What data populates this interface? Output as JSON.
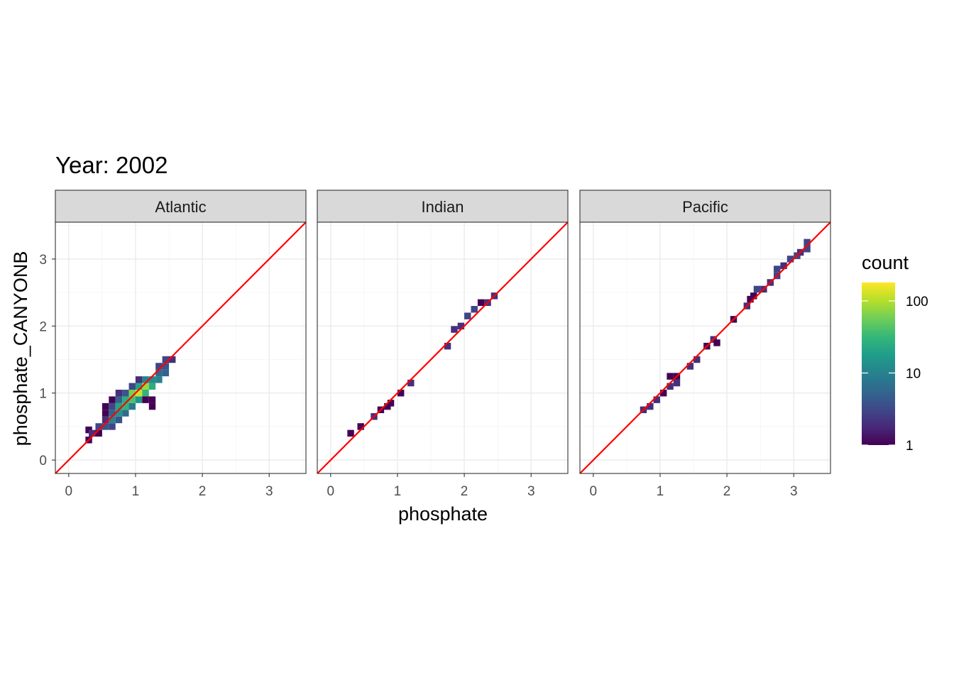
{
  "chart_data": {
    "type": "heatmap",
    "title": "Year: 2002",
    "xlabel": "phosphate",
    "ylabel": "phosphate_CANYONB",
    "xlim": [
      -0.2,
      3.55
    ],
    "ylim": [
      -0.2,
      3.55
    ],
    "x_ticks": [
      "0",
      "1",
      "2",
      "3"
    ],
    "y_ticks": [
      "0",
      "1",
      "2",
      "3"
    ],
    "grid": true,
    "bin_width": 0.1,
    "reference_line": {
      "intercept": 0,
      "slope": 1,
      "color": "#ff0000"
    },
    "legend": {
      "title": "count",
      "position": "right",
      "scale": "log10",
      "breaks": [
        "1",
        "10",
        "100"
      ],
      "colormap": [
        "#440154",
        "#482878",
        "#3e4989",
        "#31688e",
        "#26828e",
        "#1f9e89",
        "#35b779",
        "#6ece58",
        "#b5de2b",
        "#fde725"
      ]
    },
    "panels": [
      {
        "label": "Atlantic",
        "bins": [
          [
            0.3,
            0.3,
            1
          ],
          [
            0.3,
            0.45,
            1
          ],
          [
            0.35,
            0.4,
            2
          ],
          [
            0.45,
            0.4,
            1
          ],
          [
            0.45,
            0.5,
            3
          ],
          [
            0.55,
            0.5,
            4
          ],
          [
            0.55,
            0.6,
            2
          ],
          [
            0.55,
            0.7,
            1
          ],
          [
            0.55,
            0.8,
            1
          ],
          [
            0.65,
            0.5,
            3
          ],
          [
            0.65,
            0.6,
            10
          ],
          [
            0.65,
            0.7,
            5
          ],
          [
            0.65,
            0.8,
            3
          ],
          [
            0.65,
            0.9,
            1
          ],
          [
            0.75,
            0.6,
            4
          ],
          [
            0.75,
            0.7,
            15
          ],
          [
            0.75,
            0.8,
            20
          ],
          [
            0.75,
            0.9,
            5
          ],
          [
            0.75,
            1.0,
            2
          ],
          [
            0.85,
            0.7,
            6
          ],
          [
            0.85,
            0.8,
            30
          ],
          [
            0.85,
            0.9,
            25
          ],
          [
            0.85,
            1.0,
            4
          ],
          [
            0.95,
            0.8,
            8
          ],
          [
            0.95,
            0.9,
            40
          ],
          [
            0.95,
            1.0,
            60
          ],
          [
            0.95,
            1.1,
            3
          ],
          [
            1.05,
            0.9,
            15
          ],
          [
            1.05,
            1.0,
            120
          ],
          [
            1.05,
            1.1,
            20
          ],
          [
            1.05,
            1.2,
            2
          ],
          [
            1.15,
            1.0,
            30
          ],
          [
            1.15,
            1.1,
            80
          ],
          [
            1.15,
            1.2,
            10
          ],
          [
            1.15,
            0.9,
            1
          ],
          [
            1.25,
            1.1,
            25
          ],
          [
            1.25,
            1.2,
            12
          ],
          [
            1.25,
            0.9,
            1
          ],
          [
            1.25,
            0.8,
            1
          ],
          [
            1.35,
            1.2,
            10
          ],
          [
            1.35,
            1.3,
            6
          ],
          [
            1.35,
            1.4,
            3
          ],
          [
            1.45,
            1.3,
            5
          ],
          [
            1.45,
            1.4,
            4
          ],
          [
            1.45,
            1.5,
            3
          ],
          [
            1.55,
            1.5,
            2
          ]
        ]
      },
      {
        "label": "Indian",
        "bins": [
          [
            0.3,
            0.4,
            1
          ],
          [
            0.45,
            0.5,
            1
          ],
          [
            0.65,
            0.65,
            2
          ],
          [
            0.75,
            0.75,
            1
          ],
          [
            0.85,
            0.8,
            1
          ],
          [
            0.9,
            0.85,
            1
          ],
          [
            1.05,
            1.0,
            1
          ],
          [
            1.2,
            1.15,
            2
          ],
          [
            1.75,
            1.7,
            2
          ],
          [
            1.85,
            1.95,
            2
          ],
          [
            1.95,
            2.0,
            2
          ],
          [
            2.05,
            2.15,
            3
          ],
          [
            2.15,
            2.25,
            3
          ],
          [
            2.25,
            2.35,
            1
          ],
          [
            2.35,
            2.35,
            2
          ],
          [
            2.45,
            2.45,
            2
          ]
        ]
      },
      {
        "label": "Pacific",
        "bins": [
          [
            0.75,
            0.75,
            2
          ],
          [
            0.85,
            0.8,
            2
          ],
          [
            0.95,
            0.9,
            2
          ],
          [
            1.05,
            1.0,
            1
          ],
          [
            1.15,
            1.1,
            2
          ],
          [
            1.15,
            1.25,
            1
          ],
          [
            1.25,
            1.25,
            1
          ],
          [
            1.25,
            1.15,
            2
          ],
          [
            1.45,
            1.4,
            2
          ],
          [
            1.55,
            1.5,
            2
          ],
          [
            1.7,
            1.7,
            1
          ],
          [
            1.8,
            1.8,
            2
          ],
          [
            1.85,
            1.75,
            1
          ],
          [
            2.1,
            2.1,
            1
          ],
          [
            2.3,
            2.3,
            2
          ],
          [
            2.35,
            2.4,
            1
          ],
          [
            2.4,
            2.45,
            1
          ],
          [
            2.45,
            2.55,
            3
          ],
          [
            2.55,
            2.55,
            2
          ],
          [
            2.65,
            2.65,
            2
          ],
          [
            2.75,
            2.75,
            3
          ],
          [
            2.75,
            2.85,
            3
          ],
          [
            2.85,
            2.9,
            2
          ],
          [
            2.95,
            3.0,
            3
          ],
          [
            3.05,
            3.05,
            3
          ],
          [
            3.1,
            3.1,
            2
          ],
          [
            3.2,
            3.15,
            3
          ],
          [
            3.2,
            3.25,
            3
          ]
        ]
      }
    ]
  }
}
